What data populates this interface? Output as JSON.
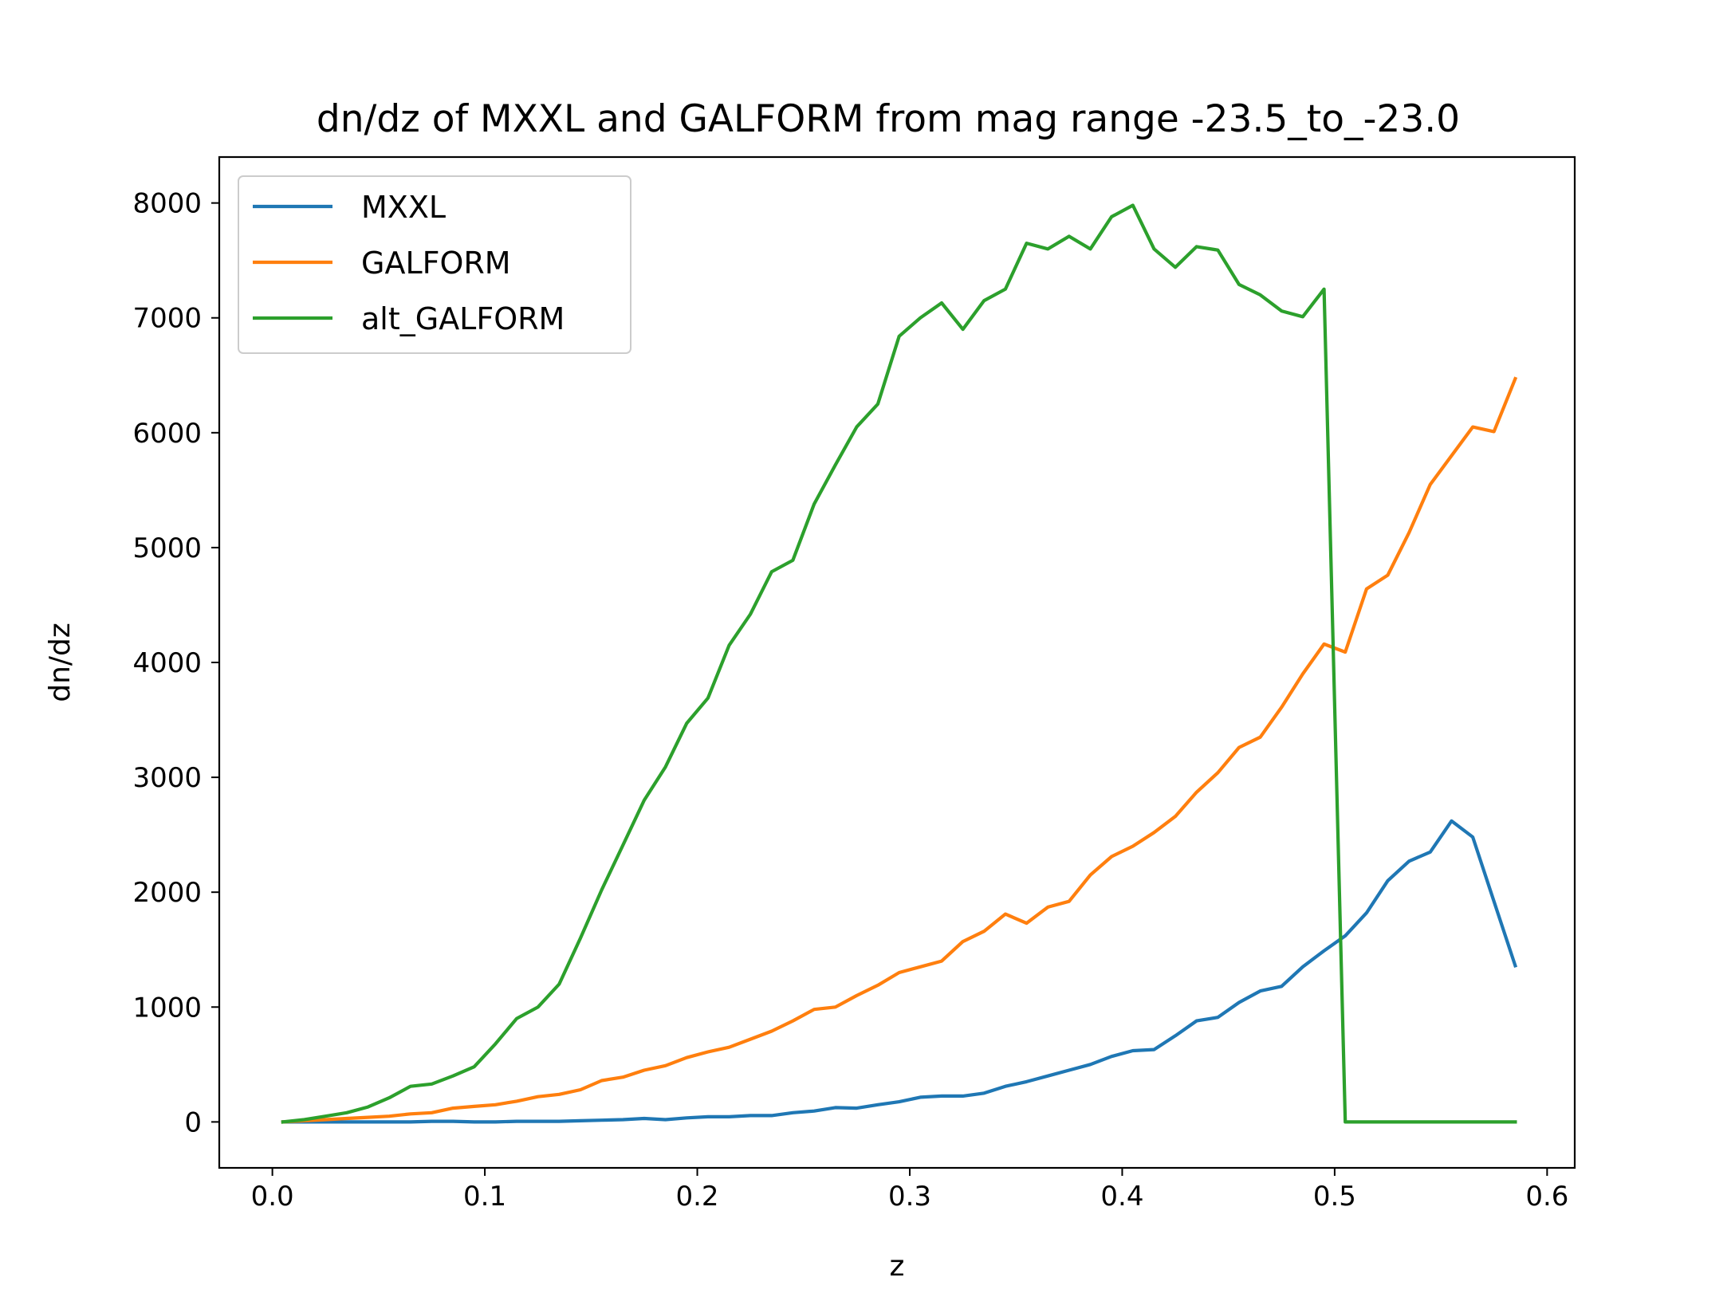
{
  "chart_data": {
    "type": "line",
    "title": "dn/dz of MXXL and GALFORM from mag range -23.5_to_-23.0",
    "xlabel": "z",
    "ylabel": "dn/dz",
    "xlim": [
      -0.025,
      0.613
    ],
    "ylim": [
      -400,
      8400
    ],
    "xticks": [
      0.0,
      0.1,
      0.2,
      0.3,
      0.4,
      0.5,
      0.6
    ],
    "xtick_labels": [
      "0.0",
      "0.1",
      "0.2",
      "0.3",
      "0.4",
      "0.5",
      "0.6"
    ],
    "yticks": [
      0,
      1000,
      2000,
      3000,
      4000,
      5000,
      6000,
      7000,
      8000
    ],
    "ytick_labels": [
      "0",
      "1000",
      "2000",
      "3000",
      "4000",
      "5000",
      "6000",
      "7000",
      "8000"
    ],
    "grid": false,
    "legend_position": "top-left",
    "x": [
      0.005,
      0.015,
      0.025,
      0.035,
      0.045,
      0.055,
      0.065,
      0.075,
      0.085,
      0.095,
      0.105,
      0.115,
      0.125,
      0.135,
      0.145,
      0.155,
      0.165,
      0.175,
      0.185,
      0.195,
      0.205,
      0.215,
      0.225,
      0.235,
      0.245,
      0.255,
      0.265,
      0.275,
      0.285,
      0.295,
      0.305,
      0.315,
      0.325,
      0.335,
      0.345,
      0.355,
      0.365,
      0.375,
      0.385,
      0.395,
      0.405,
      0.415,
      0.425,
      0.435,
      0.445,
      0.455,
      0.465,
      0.475,
      0.485,
      0.495,
      0.505,
      0.515,
      0.525,
      0.535,
      0.545,
      0.555,
      0.565,
      0.575,
      0.585
    ],
    "series": [
      {
        "name": "MXXL",
        "color": "#1f77b4",
        "values": [
          0,
          0,
          0,
          0,
          0,
          0,
          0,
          5,
          5,
          0,
          0,
          5,
          5,
          5,
          10,
          15,
          20,
          30,
          20,
          35,
          45,
          45,
          55,
          55,
          80,
          95,
          125,
          120,
          150,
          175,
          215,
          225,
          225,
          250,
          310,
          350,
          400,
          450,
          500,
          570,
          620,
          630,
          750,
          880,
          910,
          1040,
          1140,
          1180,
          1350,
          1490,
          1620,
          1820,
          2100,
          2270,
          2350,
          2620,
          2480,
          1920,
          1360
        ]
      },
      {
        "name": "GALFORM",
        "color": "#ff7f0e",
        "values": [
          0,
          10,
          20,
          30,
          40,
          50,
          70,
          80,
          120,
          135,
          150,
          180,
          220,
          240,
          280,
          360,
          390,
          450,
          490,
          560,
          610,
          650,
          720,
          790,
          880,
          980,
          1000,
          1100,
          1190,
          1300,
          1350,
          1400,
          1570,
          1660,
          1810,
          1730,
          1870,
          1920,
          2150,
          2310,
          2400,
          2520,
          2660,
          2870,
          3040,
          3260,
          3350,
          3610,
          3900,
          4160,
          4090,
          4640,
          4760,
          5130,
          5550,
          5800,
          6050,
          6010,
          6470
        ]
      },
      {
        "name": "alt_GALFORM",
        "color": "#2ca02c",
        "values": [
          0,
          20,
          50,
          80,
          130,
          210,
          310,
          330,
          400,
          480,
          680,
          900,
          1000,
          1200,
          1600,
          2020,
          2410,
          2800,
          3090,
          3470,
          3690,
          4150,
          4420,
          4790,
          4890,
          5380,
          5720,
          6050,
          6250,
          6840,
          7000,
          7130,
          6900,
          7150,
          7250,
          7650,
          7600,
          7710,
          7600,
          7880,
          7980,
          7600,
          7440,
          7620,
          7590,
          7290,
          7200,
          7060,
          7010,
          7250,
          0,
          0,
          0,
          0,
          0,
          0,
          0,
          0,
          0
        ]
      }
    ]
  }
}
